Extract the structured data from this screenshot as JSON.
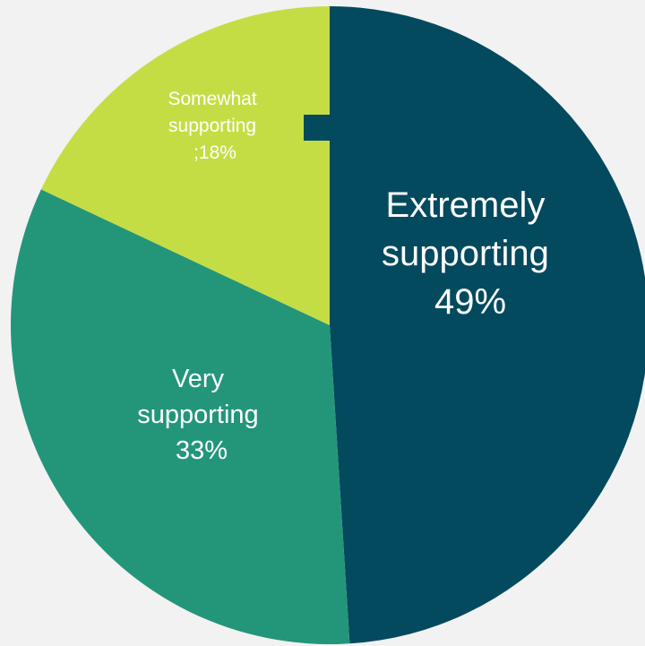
{
  "chart_data": {
    "type": "pie",
    "categories": [
      "Extremely supporting",
      "Very supporting",
      "Somewhat supporting"
    ],
    "values": [
      49,
      33,
      18
    ],
    "colors": [
      "#034a5f",
      "#23967a",
      "#c5dd45"
    ],
    "start_angle_deg": 0,
    "direction": "clockwise",
    "title": "",
    "legend": "none",
    "data_labels": [
      {
        "lines": [
          "Extremely",
          "supporting",
          "49%"
        ]
      },
      {
        "lines": [
          "Very",
          "supporting",
          "33%"
        ]
      },
      {
        "lines": [
          "Somewhat",
          "supporting",
          ";18%"
        ]
      }
    ],
    "background": "#f2f2f2",
    "legend_key_color": "#034a5f"
  }
}
